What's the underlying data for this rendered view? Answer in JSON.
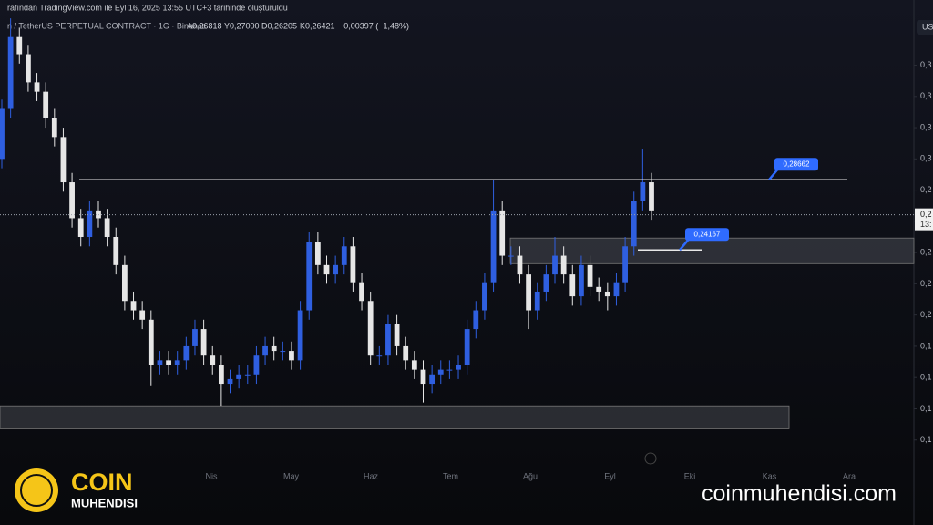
{
  "header": {
    "line1": "rafından TradingView.com ile Eyl 16, 2025 13:55 UTC+3 tarihinde oluşturuldu",
    "line2": "n / TetherUS PERPETUAL CONTRACT · 1G · Binance",
    "open": "A0,26818",
    "high": "Y0,27000",
    "low": "D0,26205",
    "close": "K0,26421",
    "change": "−0,00397 (−1,48%)",
    "currency": "US"
  },
  "chart_data": {
    "type": "candlestick",
    "up_color": "#2f5fe0",
    "down_color": "#e6e6e6",
    "open": [
      0.3,
      0.332,
      0.378,
      0.367,
      0.349,
      0.343,
      0.326,
      0.314,
      0.285,
      0.262,
      0.25,
      0.267,
      0.262,
      0.25,
      0.232,
      0.209,
      0.203,
      0.197,
      0.168,
      0.171,
      0.168,
      0.171,
      0.18,
      0.191,
      0.174,
      0.168,
      0.156,
      0.159,
      0.162,
      0.162,
      0.174,
      0.18,
      0.177,
      0.177,
      0.171,
      0.203,
      0.247,
      0.232,
      0.226,
      0.232,
      0.244,
      0.221,
      0.209,
      0.174,
      0.174,
      0.194,
      0.18,
      0.171,
      0.165,
      0.156,
      0.162,
      0.165,
      0.165,
      0.168,
      0.191,
      0.203,
      0.221,
      0.267,
      0.238,
      0.238,
      0.226,
      0.203,
      0.215,
      0.226,
      0.238,
      0.226,
      0.212,
      0.232,
      0.218,
      0.215,
      0.212,
      0.221,
      0.244,
      0.273,
      0.285
    ],
    "high": [
      0.338,
      0.39,
      0.384,
      0.373,
      0.355,
      0.349,
      0.332,
      0.32,
      0.291,
      0.268,
      0.273,
      0.273,
      0.268,
      0.256,
      0.238,
      0.215,
      0.209,
      0.203,
      0.177,
      0.177,
      0.177,
      0.186,
      0.197,
      0.197,
      0.18,
      0.174,
      0.165,
      0.168,
      0.168,
      0.18,
      0.186,
      0.186,
      0.183,
      0.183,
      0.209,
      0.253,
      0.253,
      0.238,
      0.238,
      0.25,
      0.25,
      0.227,
      0.215,
      0.18,
      0.2,
      0.2,
      0.186,
      0.177,
      0.171,
      0.168,
      0.171,
      0.171,
      0.174,
      0.197,
      0.209,
      0.227,
      0.287,
      0.273,
      0.244,
      0.244,
      0.232,
      0.221,
      0.232,
      0.25,
      0.244,
      0.232,
      0.238,
      0.238,
      0.224,
      0.221,
      0.227,
      0.25,
      0.279,
      0.306,
      0.291
    ],
    "low": [
      0.294,
      0.326,
      0.361,
      0.343,
      0.337,
      0.32,
      0.308,
      0.279,
      0.256,
      0.244,
      0.244,
      0.256,
      0.244,
      0.226,
      0.203,
      0.197,
      0.191,
      0.155,
      0.162,
      0.162,
      0.162,
      0.165,
      0.174,
      0.168,
      0.162,
      0.142,
      0.15,
      0.153,
      0.156,
      0.156,
      0.168,
      0.171,
      0.171,
      0.165,
      0.165,
      0.197,
      0.226,
      0.22,
      0.22,
      0.226,
      0.215,
      0.203,
      0.168,
      0.168,
      0.168,
      0.174,
      0.165,
      0.159,
      0.144,
      0.15,
      0.156,
      0.159,
      0.159,
      0.162,
      0.185,
      0.197,
      0.215,
      0.232,
      0.232,
      0.22,
      0.191,
      0.197,
      0.209,
      0.22,
      0.22,
      0.206,
      0.206,
      0.212,
      0.209,
      0.203,
      0.206,
      0.215,
      0.238,
      0.267,
      0.261
    ],
    "close": [
      0.332,
      0.378,
      0.367,
      0.349,
      0.343,
      0.326,
      0.314,
      0.285,
      0.262,
      0.25,
      0.267,
      0.262,
      0.25,
      0.232,
      0.209,
      0.203,
      0.197,
      0.168,
      0.171,
      0.168,
      0.171,
      0.18,
      0.191,
      0.174,
      0.168,
      0.156,
      0.159,
      0.162,
      0.162,
      0.174,
      0.18,
      0.177,
      0.177,
      0.171,
      0.203,
      0.247,
      0.232,
      0.226,
      0.232,
      0.244,
      0.221,
      0.209,
      0.174,
      0.174,
      0.194,
      0.18,
      0.171,
      0.165,
      0.156,
      0.162,
      0.165,
      0.165,
      0.168,
      0.191,
      0.203,
      0.221,
      0.267,
      0.238,
      0.238,
      0.226,
      0.203,
      0.215,
      0.226,
      0.238,
      0.226,
      0.212,
      0.232,
      0.218,
      0.215,
      0.212,
      0.221,
      0.244,
      0.273,
      0.285,
      0.267
    ],
    "ylim": [
      0.1,
      0.4
    ],
    "yticks": [
      {
        "value": 0.36,
        "label": "0,3"
      },
      {
        "value": 0.34,
        "label": "0,3"
      },
      {
        "value": 0.32,
        "label": "0,3"
      },
      {
        "value": 0.3,
        "label": "0,3"
      },
      {
        "value": 0.28,
        "label": "0,2"
      },
      {
        "value": 0.26,
        "label": "0,2"
      },
      {
        "value": 0.24,
        "label": "0,2"
      },
      {
        "value": 0.22,
        "label": "0,2"
      },
      {
        "value": 0.2,
        "label": "0,2"
      },
      {
        "value": 0.18,
        "label": "0,1"
      },
      {
        "value": 0.16,
        "label": "0,1"
      },
      {
        "value": 0.14,
        "label": "0,1"
      },
      {
        "value": 0.12,
        "label": "0,1"
      }
    ],
    "months": [
      "Nis",
      "May",
      "Haz",
      "Tem",
      "Ağu",
      "Eyl",
      "Eki",
      "Kas",
      "Ara"
    ],
    "levels": [
      {
        "value": 0.28662,
        "label": "0,28662"
      },
      {
        "value": 0.24167,
        "label": "0,24167"
      }
    ],
    "zones": [
      {
        "top": 0.2493,
        "bottom": 0.2329
      },
      {
        "top": 0.1419,
        "bottom": 0.1272
      }
    ],
    "last_price": {
      "value": 0.26421,
      "label": "0,2"
    },
    "last_time": "13:"
  },
  "watermark": {
    "brand_top": "COIN",
    "brand_bottom": "MUHENDISI",
    "site": "coinmuhendisi.com"
  }
}
